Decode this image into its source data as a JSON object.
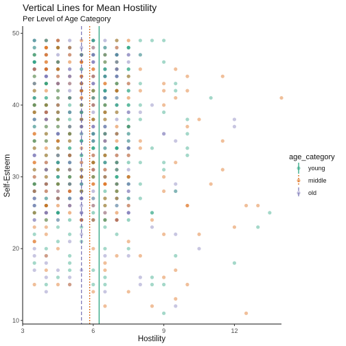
{
  "chart_data": {
    "type": "scatter",
    "title": "Vertical Lines for Mean Hostility",
    "subtitle": "Per Level of Age Category",
    "xlabel": "Hostility",
    "ylabel": "Self-Esteem",
    "xlim": [
      3,
      14
    ],
    "ylim": [
      9.5,
      51
    ],
    "x_ticks": [
      3,
      6,
      9,
      12
    ],
    "y_ticks": [
      10,
      20,
      30,
      40,
      50
    ],
    "grid": false,
    "legend": {
      "title": "age_category",
      "position": "right",
      "items": [
        {
          "label": "young",
          "color": "#1b9e77",
          "linetype": "solid"
        },
        {
          "label": "middle",
          "color": "#d95f02",
          "linetype": "dotted"
        },
        {
          "label": "old",
          "color": "#7570b3",
          "linetype": "dashed"
        }
      ]
    },
    "mean_lines": [
      {
        "group": "young",
        "x": 6.25,
        "color": "#1b9e77",
        "linetype": "solid"
      },
      {
        "group": "middle",
        "x": 5.85,
        "color": "#d95f02",
        "linetype": "dotted"
      },
      {
        "group": "old",
        "x": 5.5,
        "color": "#7570b3",
        "linetype": "dashed"
      }
    ],
    "point_colors": {
      "young": "#1b9e77",
      "middle": "#d95f02",
      "old": "#7570b3"
    },
    "points": [
      {
        "x": 13.5,
        "y": 25,
        "g": "young"
      },
      {
        "x": 13.0,
        "y": 23,
        "g": "young"
      },
      {
        "x": 12.0,
        "y": 18,
        "g": "young"
      },
      {
        "x": 11.0,
        "y": 41,
        "g": "young"
      },
      {
        "x": 10.0,
        "y": 34,
        "g": "young"
      },
      {
        "x": 9.5,
        "y": 19,
        "g": "young"
      },
      {
        "x": 9.0,
        "y": 11,
        "g": "young"
      },
      {
        "x": 8.5,
        "y": 25,
        "g": "young"
      },
      {
        "x": 8.0,
        "y": 47,
        "g": "young"
      },
      {
        "x": 7.0,
        "y": 47,
        "g": "young"
      },
      {
        "x": 7.5,
        "y": 35,
        "g": "young"
      },
      {
        "x": 6.5,
        "y": 23,
        "g": "young"
      },
      {
        "x": 9.5,
        "y": 28,
        "g": "young"
      },
      {
        "x": 8.0,
        "y": 40,
        "g": "young"
      },
      {
        "x": 7.0,
        "y": 30,
        "g": "young"
      },
      {
        "x": 6.5,
        "y": 44,
        "g": "young"
      },
      {
        "x": 12.5,
        "y": 26,
        "g": "middle"
      },
      {
        "x": 14.0,
        "y": 41,
        "g": "middle"
      },
      {
        "x": 12.5,
        "y": 11,
        "g": "middle"
      },
      {
        "x": 11.5,
        "y": 44,
        "g": "middle"
      },
      {
        "x": 11.5,
        "y": 35,
        "g": "middle"
      },
      {
        "x": 11.0,
        "y": 29,
        "g": "middle"
      },
      {
        "x": 10.5,
        "y": 22,
        "g": "middle"
      },
      {
        "x": 10.5,
        "y": 38,
        "g": "middle"
      },
      {
        "x": 10.0,
        "y": 44,
        "g": "middle"
      },
      {
        "x": 10.0,
        "y": 15,
        "g": "middle"
      },
      {
        "x": 9.5,
        "y": 13,
        "g": "middle"
      },
      {
        "x": 9.5,
        "y": 32,
        "g": "middle"
      },
      {
        "x": 9.0,
        "y": 42,
        "g": "middle"
      },
      {
        "x": 9.0,
        "y": 16,
        "g": "middle"
      },
      {
        "x": 8.5,
        "y": 12,
        "g": "middle"
      },
      {
        "x": 12.0,
        "y": 23,
        "g": "middle"
      },
      {
        "x": 13.0,
        "y": 26,
        "g": "middle"
      },
      {
        "x": 11.5,
        "y": 31,
        "g": "middle"
      },
      {
        "x": 10.0,
        "y": 26,
        "g": "middle"
      },
      {
        "x": 3.5,
        "y": 21,
        "g": "middle"
      },
      {
        "x": 4.0,
        "y": 19,
        "g": "middle"
      },
      {
        "x": 6.5,
        "y": 12,
        "g": "middle"
      },
      {
        "x": 7.5,
        "y": 14,
        "g": "middle"
      },
      {
        "x": 5.0,
        "y": 15,
        "g": "middle"
      },
      {
        "x": 12.0,
        "y": 37,
        "g": "old"
      },
      {
        "x": 12.0,
        "y": 38,
        "g": "old"
      },
      {
        "x": 9.5,
        "y": 12,
        "g": "old"
      },
      {
        "x": 10.5,
        "y": 20,
        "g": "old"
      },
      {
        "x": 8.0,
        "y": 15,
        "g": "old"
      },
      {
        "x": 7.0,
        "y": 44,
        "g": "old"
      },
      {
        "x": 8.5,
        "y": 40,
        "g": "old"
      },
      {
        "x": 9.0,
        "y": 36,
        "g": "old"
      },
      {
        "x": 7.5,
        "y": 28,
        "g": "old"
      },
      {
        "x": 6.5,
        "y": 19,
        "g": "old"
      },
      {
        "x": 5.5,
        "y": 17,
        "g": "old"
      },
      {
        "x": 5.0,
        "y": 16,
        "g": "old"
      }
    ],
    "grid_cluster": {
      "x_min": 3.5,
      "x_max": 7.5,
      "step": 0.5,
      "y_min": 24,
      "y_max": 49,
      "colors": [
        "#1b9e77",
        "#d95f02",
        "#7570b3"
      ]
    },
    "spread_cluster": {
      "x_min": 3.5,
      "x_max": 10.0,
      "step": 0.5,
      "y_min": 14,
      "y_max": 49,
      "colors": [
        "#d95f02",
        "#7570b3",
        "#1b9e77"
      ]
    }
  }
}
